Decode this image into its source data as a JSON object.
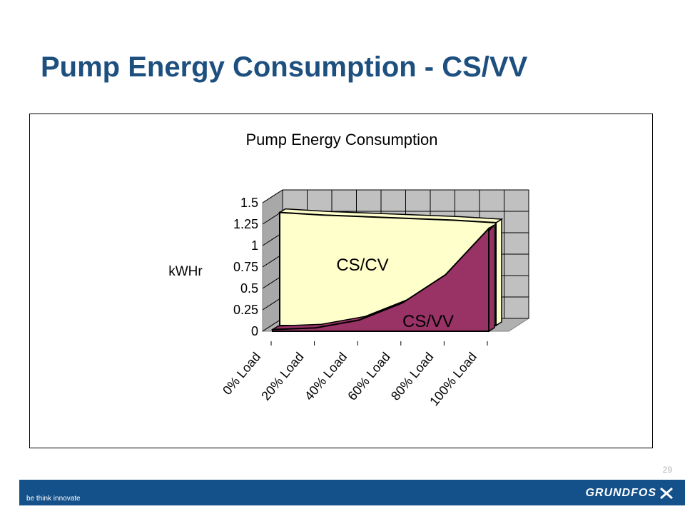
{
  "slide": {
    "title": "Pump Energy Consumption - CS/VV",
    "page_number": "29",
    "tagline": "be think innovate",
    "brand": "GRUNDFOS"
  },
  "colors": {
    "title": "#1d4f7f",
    "footer": "#14508a",
    "cs_cv_fill": "#ffffcc",
    "cs_vv_fill": "#993366",
    "wall": "#c0c0c0"
  },
  "chart_data": {
    "type": "area",
    "title": "Pump Energy Consumption",
    "ylabel": "kWHr",
    "xlabel": "",
    "categories": [
      "0% Load",
      "20% Load",
      "40% Load",
      "60% Load",
      "80% Load",
      "100% Load"
    ],
    "ylim": [
      0,
      1.5
    ],
    "yticks": [
      "1.5",
      "1.25",
      "1",
      "0.75",
      "0.5",
      "0.25",
      "0"
    ],
    "grid": true,
    "three_d": true,
    "series": [
      {
        "name": "CS/CV",
        "values": [
          1.32,
          1.29,
          1.27,
          1.25,
          1.23,
          1.2
        ]
      },
      {
        "name": "CS/VV",
        "values": [
          0.02,
          0.04,
          0.13,
          0.33,
          0.66,
          1.2
        ]
      }
    ]
  }
}
